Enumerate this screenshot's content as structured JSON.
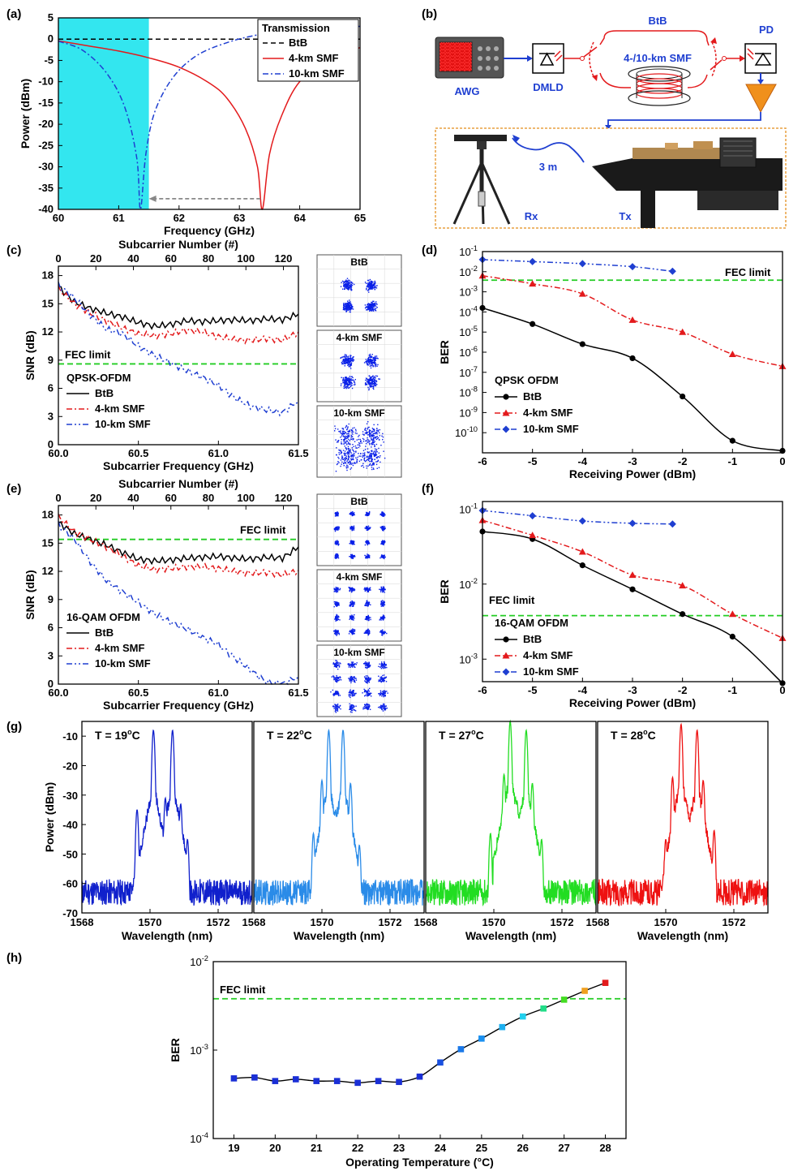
{
  "panel_labels": {
    "a": "(a)",
    "b": "(b)",
    "c": "(c)",
    "d": "(d)",
    "e": "(e)",
    "f": "(f)",
    "g": "(g)",
    "h": "(h)"
  },
  "colors": {
    "btb": "#000000",
    "smf4": "#e31a1c",
    "smf10": "#1f3fd1",
    "fec": "#22cc22",
    "shade": "#33e6ef",
    "g19": "#1020cc",
    "g22": "#2a8be8",
    "g27": "#22dd22",
    "g28": "#ee1111"
  },
  "chart_data": [
    {
      "id": "a",
      "type": "line",
      "xlabel": "Frequency (GHz)",
      "ylabel": "Power (dBm)",
      "xlim": [
        60,
        65
      ],
      "ylim": [
        -40,
        5
      ],
      "xticks": [
        60,
        61,
        62,
        63,
        64,
        65
      ],
      "yticks": [
        5,
        0,
        -5,
        -10,
        -15,
        -20,
        -25,
        -30,
        -35,
        -40
      ],
      "legend_title": "Transmission",
      "shaded_region": [
        60,
        61.5
      ],
      "series": [
        {
          "name": "BtB",
          "x": [
            60,
            65
          ],
          "y": [
            0,
            0
          ]
        },
        {
          "name": "4-km SMF",
          "x": [
            60,
            60.5,
            61,
            61.5,
            62,
            62.5,
            62.8,
            63.1,
            63.3,
            63.38,
            63.5,
            63.7,
            64,
            64.5,
            65
          ],
          "y": [
            -0.4,
            -1.6,
            -2.8,
            -4.4,
            -6.6,
            -10.3,
            -14,
            -21,
            -30,
            -40,
            -27,
            -18,
            -10,
            -4.5,
            -2
          ]
        },
        {
          "name": "10-km SMF",
          "x": [
            60,
            60.4,
            60.8,
            61.1,
            61.3,
            61.36,
            61.45,
            61.6,
            61.9,
            62.3,
            62.8,
            63.3,
            64,
            65
          ],
          "y": [
            -0.5,
            -2.6,
            -8,
            -16,
            -28,
            -40,
            -27,
            -17,
            -9,
            -3.8,
            -0.8,
            1,
            2.6,
            3
          ]
        }
      ],
      "annotation_arrow": {
        "from": [
          63.35,
          -37.5
        ],
        "to": [
          61.5,
          -37.5
        ]
      }
    },
    {
      "id": "c",
      "type": "line",
      "xlabel": "Subcarrier Frequency (GHz)",
      "ylabel": "SNR (dB)",
      "x2label": "Subcarrier Number (#)",
      "xlim": [
        60,
        61.5
      ],
      "ylim": [
        0,
        19
      ],
      "xticks": [
        60.0,
        60.5,
        61.0,
        61.5
      ],
      "xticklabels": [
        "60.0",
        "60.5",
        "61.0",
        "61.5"
      ],
      "x2ticks": [
        0,
        20,
        40,
        60,
        80,
        100,
        120
      ],
      "x2lim": [
        0,
        128
      ],
      "yticks": [
        0,
        3,
        6,
        9,
        12,
        15,
        18
      ],
      "fec_limit": 8.6,
      "fec_label": "FEC limit",
      "legend_title": "QPSK-OFDM",
      "series": [
        {
          "name": "BtB",
          "x": [
            60,
            60.1,
            60.2,
            60.3,
            60.4,
            60.5,
            60.6,
            60.7,
            60.8,
            60.9,
            61,
            61.1,
            61.2,
            61.3,
            61.4,
            61.5
          ],
          "y": [
            16.8,
            15.2,
            14.5,
            14,
            13.6,
            13,
            12.6,
            12.8,
            13.2,
            13.1,
            13.2,
            13.3,
            13.2,
            13.4,
            13.3,
            13.9
          ]
        },
        {
          "name": "4-km SMF",
          "x": [
            60,
            60.1,
            60.2,
            60.3,
            60.4,
            60.5,
            60.6,
            60.7,
            60.8,
            60.9,
            61,
            61.1,
            61.2,
            61.3,
            61.4,
            61.5
          ],
          "y": [
            16.6,
            15,
            14,
            13.2,
            12.4,
            11.8,
            11.6,
            11.8,
            12.2,
            12,
            11.5,
            11.2,
            11.1,
            11.3,
            11.1,
            12
          ]
        },
        {
          "name": "10-km SMF",
          "x": [
            60,
            60.1,
            60.2,
            60.3,
            60.4,
            60.5,
            60.6,
            60.7,
            60.8,
            60.9,
            61,
            61.1,
            61.2,
            61.3,
            61.4,
            61.5
          ],
          "y": [
            17,
            15.6,
            13.8,
            12.3,
            11.8,
            10.5,
            9.5,
            8.7,
            7.9,
            7.2,
            6.3,
            5,
            4.1,
            3.7,
            3.4,
            4.7
          ]
        }
      ],
      "constellations": [
        {
          "label": "BtB",
          "points": 16,
          "spread": 0.12
        },
        {
          "label": "4-km SMF",
          "points": 16,
          "spread": 0.15
        },
        {
          "label": "10-km SMF",
          "points": 16,
          "spread": 0.27
        }
      ]
    },
    {
      "id": "d",
      "type": "line",
      "xlabel": "Receiving Power (dBm)",
      "ylabel": "BER",
      "xlim": [
        -6,
        0
      ],
      "ylim_exp": [
        -11,
        -1
      ],
      "log_y": true,
      "xticks": [
        -6,
        -5,
        -4,
        -3,
        -2,
        -1,
        0
      ],
      "yticks_exp": [
        -1,
        -2,
        -3,
        -4,
        -5,
        -6,
        -7,
        -8,
        -9,
        -10
      ],
      "fec_limit_exp": -2.42,
      "fec_label": "FEC limit",
      "legend_title": "QPSK OFDM",
      "series": [
        {
          "name": "BtB",
          "x": [
            -6,
            -5,
            -4,
            -3,
            -2,
            -1,
            0
          ],
          "y_exp": [
            -3.8,
            -4.6,
            -5.6,
            -6.3,
            -8.2,
            -10.4,
            -10.9
          ]
        },
        {
          "name": "4-km SMF",
          "x": [
            -6,
            -5,
            -4,
            -3,
            -2,
            -1,
            0
          ],
          "y_exp": [
            -2.2,
            -2.6,
            -3.1,
            -4.4,
            -5,
            -6.1,
            -6.7
          ]
        },
        {
          "name": "10-km SMF",
          "x": [
            -6,
            -5,
            -4,
            -3,
            -2.2
          ],
          "y_exp": [
            -1.4,
            -1.5,
            -1.6,
            -1.75,
            -1.98
          ]
        }
      ]
    },
    {
      "id": "e",
      "type": "line",
      "xlabel": "Subcarrier Frequency (GHz)",
      "ylabel": "SNR (dB)",
      "x2label": "Subcarrier Number (#)",
      "xlim": [
        60,
        61.5
      ],
      "ylim": [
        0,
        19
      ],
      "xticks": [
        60.0,
        60.5,
        61.0,
        61.5
      ],
      "xticklabels": [
        "60.0",
        "60.5",
        "61.0",
        "61.5"
      ],
      "x2ticks": [
        0,
        20,
        40,
        60,
        80,
        100,
        120
      ],
      "x2lim": [
        0,
        128
      ],
      "yticks": [
        0,
        3,
        6,
        9,
        12,
        15,
        18
      ],
      "fec_limit": 15.4,
      "fec_label": "FEC limit",
      "legend_title": "16-QAM OFDM",
      "series": [
        {
          "name": "BtB",
          "x": [
            60,
            60.1,
            60.2,
            60.3,
            60.4,
            60.5,
            60.6,
            60.7,
            60.8,
            60.9,
            61,
            61.1,
            61.2,
            61.3,
            61.4,
            61.5
          ],
          "y": [
            17.2,
            16,
            15.4,
            14.8,
            14,
            13.3,
            13.1,
            13.2,
            13.4,
            13.5,
            13.6,
            13.4,
            13.3,
            13.5,
            13.4,
            14.6
          ]
        },
        {
          "name": "4-km SMF",
          "x": [
            60,
            60.1,
            60.2,
            60.3,
            60.4,
            60.5,
            60.6,
            60.7,
            60.8,
            60.9,
            61,
            61.1,
            61.2,
            61.3,
            61.4,
            61.5
          ],
          "y": [
            17.8,
            16.2,
            15.4,
            14.6,
            13.6,
            12.6,
            12.2,
            12.3,
            12.5,
            12.5,
            12.3,
            12,
            11.8,
            11.9,
            11.6,
            12.1
          ]
        },
        {
          "name": "10-km SMF",
          "x": [
            60,
            60.1,
            60.2,
            60.3,
            60.4,
            60.5,
            60.6,
            60.7,
            60.8,
            60.9,
            61,
            61.1,
            61.2,
            61.3,
            61.4,
            61.5
          ],
          "y": [
            17,
            15.4,
            13,
            11,
            9.8,
            8.7,
            7.5,
            6.6,
            5.9,
            5,
            4.2,
            2.8,
            1.5,
            0.2,
            0,
            0.8
          ]
        }
      ],
      "constellations": [
        {
          "label": "BtB",
          "points": 16,
          "spread": 0.05
        },
        {
          "label": "4-km SMF",
          "points": 16,
          "spread": 0.06
        },
        {
          "label": "10-km SMF",
          "points": 16,
          "spread": 0.085
        }
      ]
    },
    {
      "id": "f",
      "type": "line",
      "xlabel": "Receiving Power (dBm)",
      "ylabel": "BER",
      "xlim": [
        -6,
        0
      ],
      "ylim_exp": [
        -3.3,
        -0.9
      ],
      "log_y": true,
      "xticks": [
        -6,
        -5,
        -4,
        -3,
        -2,
        -1,
        0
      ],
      "yticks_exp": [
        -1,
        -2,
        -3
      ],
      "fec_limit_exp": -2.42,
      "fec_label": "FEC limit",
      "legend_title": "16-QAM OFDM",
      "series": [
        {
          "name": "BtB",
          "x": [
            -6,
            -5,
            -4,
            -3,
            -2,
            -1,
            0
          ],
          "y_exp": [
            -1.3,
            -1.4,
            -1.75,
            -2.07,
            -2.4,
            -2.7,
            -3.32
          ]
        },
        {
          "name": "4-km SMF",
          "x": [
            -6,
            -5,
            -4,
            -3,
            -2,
            -1,
            0
          ],
          "y_exp": [
            -1.15,
            -1.35,
            -1.57,
            -1.88,
            -2.02,
            -2.4,
            -2.72
          ]
        },
        {
          "name": "10-km SMF",
          "x": [
            -6,
            -5,
            -4,
            -3,
            -2.2
          ],
          "y_exp": [
            -1.02,
            -1.09,
            -1.16,
            -1.19,
            -1.2
          ]
        }
      ]
    },
    {
      "id": "g",
      "type": "line",
      "xlabel": "Wavelength (nm)",
      "ylabel": "Power (dBm)",
      "xlim": [
        1568,
        1573
      ],
      "ylim": [
        -70,
        -5
      ],
      "xticks": [
        1568,
        1570,
        1572
      ],
      "yticks": [
        -10,
        -20,
        -30,
        -40,
        -50,
        -60,
        -70
      ],
      "spectra": [
        {
          "label": "T = 19",
          "center": 1570.4,
          "color_key": "g19",
          "peaks": [
            [
              1569.62,
              -35
            ],
            [
              1569.9,
              -41
            ],
            [
              1570.1,
              -8
            ],
            [
              1570.3,
              -44
            ],
            [
              1570.45,
              -31
            ],
            [
              1570.66,
              -8
            ],
            [
              1570.9,
              -33
            ],
            [
              1571.1,
              -45
            ]
          ]
        },
        {
          "label": "T = 22",
          "center": 1570.55,
          "color_key": "g22",
          "peaks": [
            [
              1569.75,
              -43
            ],
            [
              1570.0,
              -25
            ],
            [
              1570.2,
              -8
            ],
            [
              1570.4,
              -35
            ],
            [
              1570.62,
              -8
            ],
            [
              1570.84,
              -26
            ],
            [
              1571.1,
              -47
            ]
          ]
        },
        {
          "label": "T = 27",
          "center": 1570.7,
          "color_key": "g27",
          "peaks": [
            [
              1569.9,
              -43
            ],
            [
              1570.3,
              -23
            ],
            [
              1570.48,
              -5
            ],
            [
              1570.68,
              -32
            ],
            [
              1570.95,
              -8
            ],
            [
              1571.13,
              -26
            ],
            [
              1571.4,
              -45
            ]
          ]
        },
        {
          "label": "T = 28",
          "center": 1570.75,
          "color_key": "g28",
          "peaks": [
            [
              1570.0,
              -45
            ],
            [
              1570.2,
              -24
            ],
            [
              1570.45,
              -6
            ],
            [
              1570.62,
              -38
            ],
            [
              1570.92,
              -8
            ],
            [
              1571.1,
              -25
            ],
            [
              1571.42,
              -42
            ]
          ]
        }
      ],
      "temp_unit": "°C"
    },
    {
      "id": "h",
      "type": "scatter",
      "xlabel": "Operating Temperature (°C)",
      "ylabel": "BER",
      "xlim": [
        18.5,
        28.5
      ],
      "ylim_exp": [
        -4,
        -2
      ],
      "log_y": true,
      "xticks": [
        19,
        20,
        21,
        22,
        23,
        24,
        25,
        26,
        27,
        28
      ],
      "yticks_exp": [
        -2,
        -3,
        -4
      ],
      "fec_limit_exp": -2.42,
      "fec_label": "FEC limit",
      "x": [
        19,
        19.5,
        20,
        20.5,
        21,
        21.5,
        22,
        22.5,
        23,
        23.5,
        24,
        24.5,
        25,
        25.5,
        26,
        26.5,
        27,
        27.5,
        28
      ],
      "y_exp": [
        -3.32,
        -3.31,
        -3.35,
        -3.33,
        -3.35,
        -3.35,
        -3.37,
        -3.35,
        -3.36,
        -3.3,
        -3.14,
        -2.99,
        -2.87,
        -2.74,
        -2.62,
        -2.53,
        -2.43,
        -2.33,
        -2.24
      ],
      "point_colors": [
        "#1a2fd6",
        "#1a2fd6",
        "#1a2fd6",
        "#1a2fd6",
        "#1a2fd6",
        "#1a2fd6",
        "#1a2fd6",
        "#1a2fd6",
        "#1a2fd6",
        "#1a2fd6",
        "#1a50e0",
        "#1a78e8",
        "#1a90f0",
        "#1eb0f0",
        "#22d0ee",
        "#22dd88",
        "#44dd22",
        "#f0a020",
        "#e31a1c"
      ]
    }
  ],
  "diagram_b": {
    "labels": {
      "awg": "AWG",
      "dmld": "DMLD",
      "btb": "BtB",
      "smf": "4-/10-km SMF",
      "pd": "PD",
      "rx": "Rx",
      "tx": "Tx",
      "distance": "3 m"
    }
  }
}
